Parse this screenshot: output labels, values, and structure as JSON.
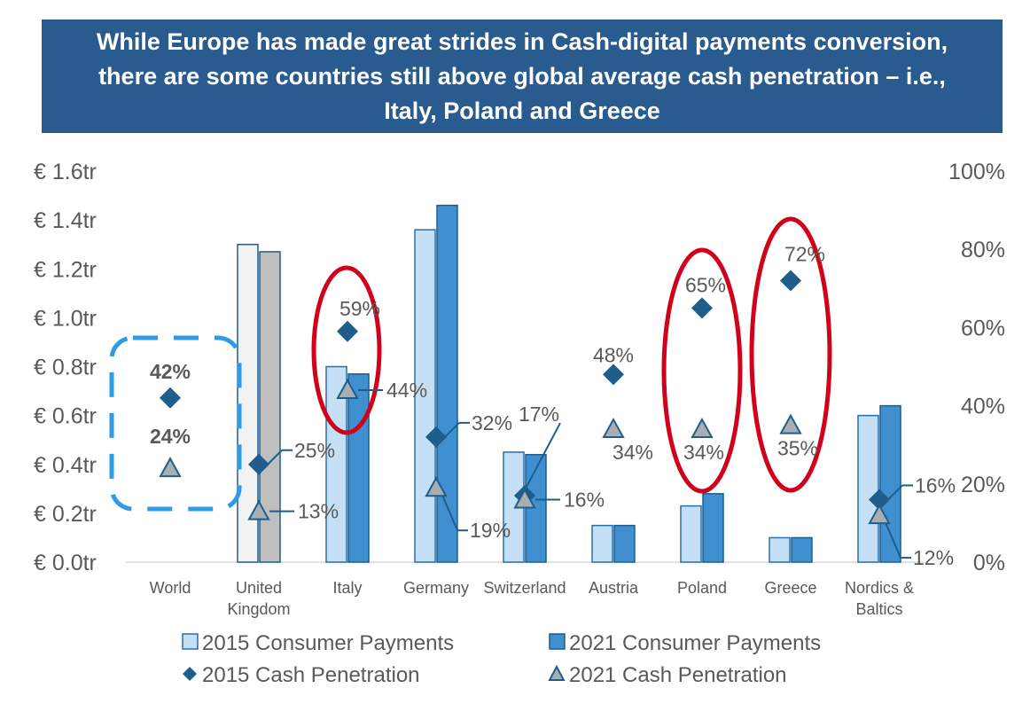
{
  "title": "While Europe has made great strides in Cash-digital payments conversion, there are some countries still above global average cash penetration – i.e., Italy, Poland and Greece",
  "chart_data": {
    "type": "bar",
    "categories": [
      "World",
      "United Kingdom",
      "Italy",
      "Germany",
      "Switzerland",
      "Austria",
      "Poland",
      "Greece",
      "Nordics & Baltics"
    ],
    "category_lines": [
      [
        "World"
      ],
      [
        "United",
        "Kingdom"
      ],
      [
        "Italy"
      ],
      [
        "Germany"
      ],
      [
        "Switzerland"
      ],
      [
        "Austria"
      ],
      [
        "Poland"
      ],
      [
        "Greece"
      ],
      [
        "Nordics &",
        "Baltics"
      ]
    ],
    "y_left": {
      "min": 0,
      "max": 1.6,
      "ticks": [
        0.0,
        0.2,
        0.4,
        0.6,
        0.8,
        1.0,
        1.2,
        1.4,
        1.6
      ],
      "tick_labels": [
        "€ 0.0tr",
        "€ 0.2tr",
        "€ 0.4tr",
        "€ 0.6tr",
        "€ 0.8tr",
        "€ 1.0tr",
        "€ 1.2tr",
        "€ 1.4tr",
        "€ 1.6tr"
      ]
    },
    "y_right": {
      "min": 0,
      "max": 100,
      "ticks": [
        0,
        20,
        40,
        60,
        80,
        100
      ],
      "tick_labels": [
        "0%",
        "20%",
        "40%",
        "60%",
        "80%",
        "100%"
      ]
    },
    "series": [
      {
        "name": "2015 Consumer Payments",
        "kind": "bar",
        "axis": "left",
        "color": "#c5e0f4",
        "values": [
          null,
          1.3,
          0.8,
          1.36,
          0.45,
          0.15,
          0.23,
          0.1,
          0.6
        ]
      },
      {
        "name": "2021 Consumer Payments",
        "kind": "bar",
        "axis": "left",
        "color": "#3f8fd1",
        "values": [
          null,
          1.27,
          0.77,
          1.46,
          0.44,
          0.15,
          0.28,
          0.1,
          0.64
        ]
      },
      {
        "name": "2015 Cash Penetration",
        "kind": "diamond",
        "axis": "right",
        "color": "#1f5e8c",
        "values": [
          42,
          25,
          59,
          32,
          17,
          48,
          65,
          72,
          16
        ],
        "labels": [
          "42%",
          "25%",
          "59%",
          "32%",
          "17%",
          "48%",
          "65%",
          "72%",
          "16%"
        ]
      },
      {
        "name": "2021 Cash Penetration",
        "kind": "triangle",
        "axis": "right",
        "color": "#a9aeb3",
        "values": [
          24,
          13,
          44,
          19,
          16,
          34,
          34,
          35,
          12
        ],
        "labels": [
          "24%",
          "13%",
          "44%",
          "19%",
          "16%",
          "34%",
          "34%",
          "35%",
          "12%"
        ]
      }
    ],
    "uk_bar_colors": {
      "2015": "#f2f2f2",
      "2021": "#bfbfbf"
    },
    "legend": [
      "2015 Consumer Payments",
      "2021 Consumer Payments",
      "2015 Cash Penetration",
      "2021 Cash Penetration"
    ],
    "highlights": {
      "circled": [
        "Italy",
        "Poland",
        "Greece"
      ],
      "boxed": [
        "World"
      ]
    }
  }
}
